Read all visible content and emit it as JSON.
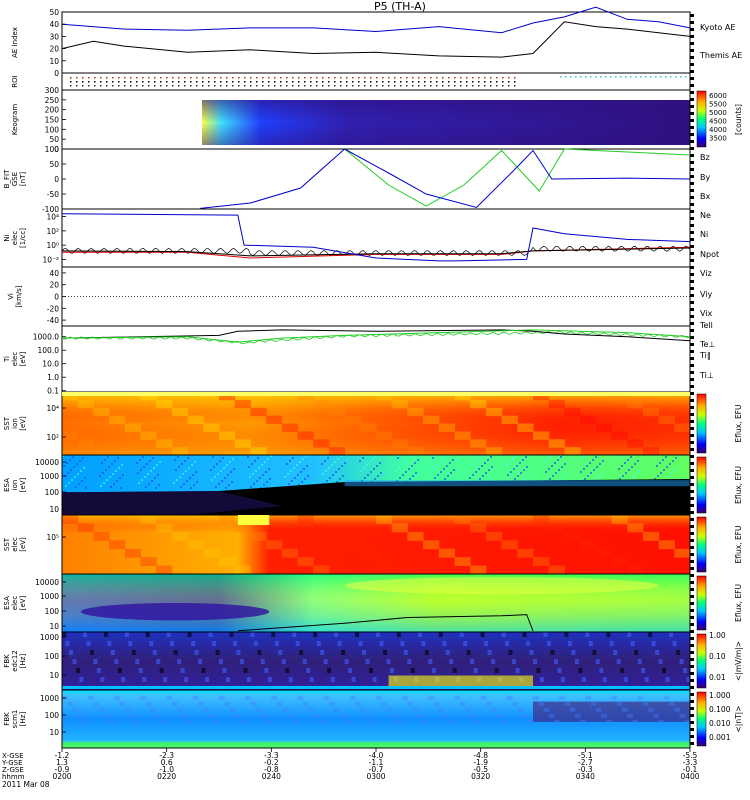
{
  "title": "P5 (TH-A)",
  "time_axis": {
    "labels": [
      "0200",
      "0220",
      "0240",
      "0300",
      "0320",
      "0340",
      "0400"
    ],
    "date": "2011 Mar 08",
    "row_labels": [
      "X-GSE",
      "Y-GSE",
      "Z-GSE",
      "hhmm"
    ],
    "ticks": [
      {
        "x": "-1.2",
        "y": "1.3",
        "z": "-0.9"
      },
      {
        "x": "-2.3",
        "y": "0.6",
        "z": "-1.0"
      },
      {
        "x": "-3.3",
        "y": "-0.2",
        "z": "-0.8"
      },
      {
        "x": "-4.0",
        "y": "-1.1",
        "z": "-0.7"
      },
      {
        "x": "-4.8",
        "y": "-1.9",
        "z": "-0.5"
      },
      {
        "x": "-5.1",
        "y": "-2.7",
        "z": "-0.3"
      },
      {
        "x": "-5.5",
        "y": "-3.3",
        "z": "-0.1"
      }
    ]
  },
  "colors": {
    "blue": "#0000cc",
    "black": "#000000",
    "green": "#22cc22",
    "red": "#dd0000"
  },
  "chart_data": [
    {
      "id": "ae",
      "type": "line",
      "ylabel": "AE Index",
      "ylim": [
        0,
        50
      ],
      "yticks": [
        "50",
        "40",
        "30",
        "20",
        "10",
        "0"
      ],
      "series": [
        {
          "name": "Kyoto AE",
          "color": "#0000cc",
          "t": [
            0,
            0.1,
            0.2,
            0.3,
            0.4,
            0.5,
            0.6,
            0.7,
            0.75,
            0.8,
            0.85,
            0.9,
            0.95,
            1
          ],
          "v": [
            40,
            36,
            35,
            37,
            37,
            34,
            38,
            33,
            41,
            46,
            54,
            44,
            42,
            37
          ]
        },
        {
          "name": "Themis AE",
          "color": "#000000",
          "t": [
            0,
            0.05,
            0.1,
            0.2,
            0.3,
            0.4,
            0.5,
            0.6,
            0.7,
            0.75,
            0.8,
            0.85,
            0.9,
            0.95,
            1
          ],
          "v": [
            20,
            26,
            22,
            17,
            19,
            16,
            17,
            14,
            13,
            16,
            42,
            38,
            36,
            33,
            30
          ]
        }
      ]
    },
    {
      "id": "roi",
      "type": "scatter",
      "ylabel": "ROI"
    },
    {
      "id": "keogram",
      "type": "heatmap",
      "ylabel": "Keogram",
      "yticks": [
        "300",
        "250",
        "200",
        "150",
        "100",
        "50",
        "0"
      ],
      "colorbar": {
        "ticks": [
          "6000",
          "5500",
          "5000",
          "4500",
          "4000",
          "3500"
        ],
        "label": "[counts]"
      }
    },
    {
      "id": "bfit",
      "type": "line",
      "ylabel": "B_FIT\nGSE\n[nT]",
      "ylim": [
        -100,
        100
      ],
      "yticks": [
        "100",
        "50",
        "0",
        "-50",
        "-100"
      ],
      "series": [
        {
          "name": "Bz",
          "color": "#dd0000",
          "t": [],
          "v": []
        },
        {
          "name": "By",
          "color": "#22cc22",
          "t": [
            0.45,
            0.52,
            0.58,
            0.64,
            0.7,
            0.76,
            0.8,
            0.9,
            1
          ],
          "v": [
            100,
            -20,
            -90,
            -20,
            95,
            -40,
            100,
            90,
            80
          ]
        },
        {
          "name": "Bx",
          "color": "#0000cc",
          "t": [
            0.22,
            0.3,
            0.38,
            0.45,
            0.52,
            0.58,
            0.66,
            0.72,
            0.75,
            0.78,
            0.9,
            1
          ],
          "v": [
            -98,
            -80,
            -30,
            100,
            20,
            -50,
            -95,
            30,
            95,
            0,
            3,
            0
          ]
        }
      ]
    },
    {
      "id": "density",
      "type": "line",
      "ylabel": "Ni\nelec\n[1/cc]",
      "yticks": [
        "10⁴",
        "10²",
        "10⁰",
        "10⁻²"
      ],
      "series": [
        {
          "name": "Ne",
          "color": "#dd0000",
          "t": [
            0,
            0.2,
            0.3,
            0.5,
            0.7,
            0.75,
            1
          ],
          "v": [
            -1,
            -1,
            -1.8,
            -1.3,
            -1.3,
            -0.8,
            -0.3
          ]
        },
        {
          "name": "Ni",
          "color": "#000000",
          "t": [
            0,
            0.2,
            0.3,
            0.5,
            0.7,
            0.75,
            1
          ],
          "v": [
            -0.8,
            -0.9,
            -1.5,
            -1.2,
            -1.2,
            -0.8,
            -0.4
          ]
        },
        {
          "name": "Npot",
          "color": "#0000cc",
          "t": [
            0,
            0.28,
            0.29,
            0.4,
            0.5,
            0.6,
            0.63,
            0.74,
            0.75,
            0.8,
            0.9,
            1
          ],
          "v": [
            4.4,
            4.2,
            0,
            -0.3,
            -1.8,
            -2.2,
            -2.2,
            -2,
            2.4,
            1.6,
            0.8,
            0.5
          ]
        }
      ]
    },
    {
      "id": "velocity",
      "type": "line",
      "ylabel": "Vi\n[km/s]",
      "ylim": [
        -50,
        50
      ],
      "yticks": [
        "40",
        "20",
        "0",
        "-20",
        "-40"
      ],
      "series": [
        {
          "name": "Viz",
          "color": "#dd0000",
          "t": [],
          "v": []
        },
        {
          "name": "Viy",
          "color": "#22cc22",
          "t": [],
          "v": []
        },
        {
          "name": "Vix",
          "color": "#0000cc",
          "t": [],
          "v": []
        }
      ]
    },
    {
      "id": "temperature",
      "type": "line",
      "ylabel": "Ti\nelec\n[eV]",
      "yticks": [
        "1000.0",
        "100.0",
        "10.0",
        "1.0",
        "0.1"
      ],
      "series": [
        {
          "name": "Tell",
          "color": "#000000",
          "t": [
            0,
            0.25,
            0.28,
            0.35,
            0.5,
            0.7,
            0.75,
            0.8,
            0.9,
            1
          ],
          "v": [
            2.9,
            3.1,
            3.4,
            3.5,
            3.4,
            3.5,
            3.4,
            3.2,
            3.0,
            2.7
          ]
        },
        {
          "name": "Te⊥",
          "color": "#dd0000",
          "t": [],
          "v": []
        },
        {
          "name": "Ti‖",
          "color": "#22cc22",
          "t": [
            0,
            0.2,
            0.28,
            0.35,
            0.45,
            0.6,
            0.75,
            0.9,
            1
          ],
          "v": [
            2.9,
            3.0,
            2.6,
            2.9,
            3.1,
            3.3,
            3.5,
            3.3,
            3.0
          ]
        },
        {
          "name": "Ti⊥",
          "color": "#0000cc",
          "t": [],
          "v": []
        }
      ]
    },
    {
      "id": "sst_ion",
      "type": "heatmap",
      "ylabel": "SST\nion\n[eV]",
      "yticks": [
        "10⁴",
        "10²"
      ],
      "colorbar": {
        "label": "Eflux, EFU"
      }
    },
    {
      "id": "esa_ion",
      "type": "heatmap",
      "ylabel": "ESA\nion\n[eV]",
      "yticks": [
        "10000",
        "1000",
        "100",
        "10"
      ],
      "colorbar": {
        "label": "Eflux, EFU"
      }
    },
    {
      "id": "sst_elec",
      "type": "heatmap",
      "ylabel": "SST\nelec\n[eV]",
      "yticks": [
        "10⁵"
      ],
      "colorbar": {
        "label": "Eflux, EFU"
      }
    },
    {
      "id": "esa_elec",
      "type": "heatmap",
      "ylabel": "ESA\nelec\n[eV]",
      "yticks": [
        "10000",
        "1000",
        "100",
        "10"
      ],
      "colorbar": {
        "label": "Eflux, EFU"
      }
    },
    {
      "id": "fbk_e",
      "type": "heatmap",
      "ylabel": "FBK\nedc12\n[Hz]",
      "yticks": [
        "1000",
        "100",
        "10"
      ],
      "colorbar": {
        "ticks": [
          "1.00",
          "0.10",
          "0.01"
        ],
        "label": "<|mV/m|>"
      }
    },
    {
      "id": "fbk_b",
      "type": "heatmap",
      "ylabel": "FBK\nscm1\n[Hz]",
      "yticks": [
        "1000",
        "100",
        "10"
      ],
      "colorbar": {
        "ticks": [
          "1.000",
          "0.100",
          "0.010",
          "0.001"
        ],
        "label": "<|nT|>"
      }
    }
  ]
}
